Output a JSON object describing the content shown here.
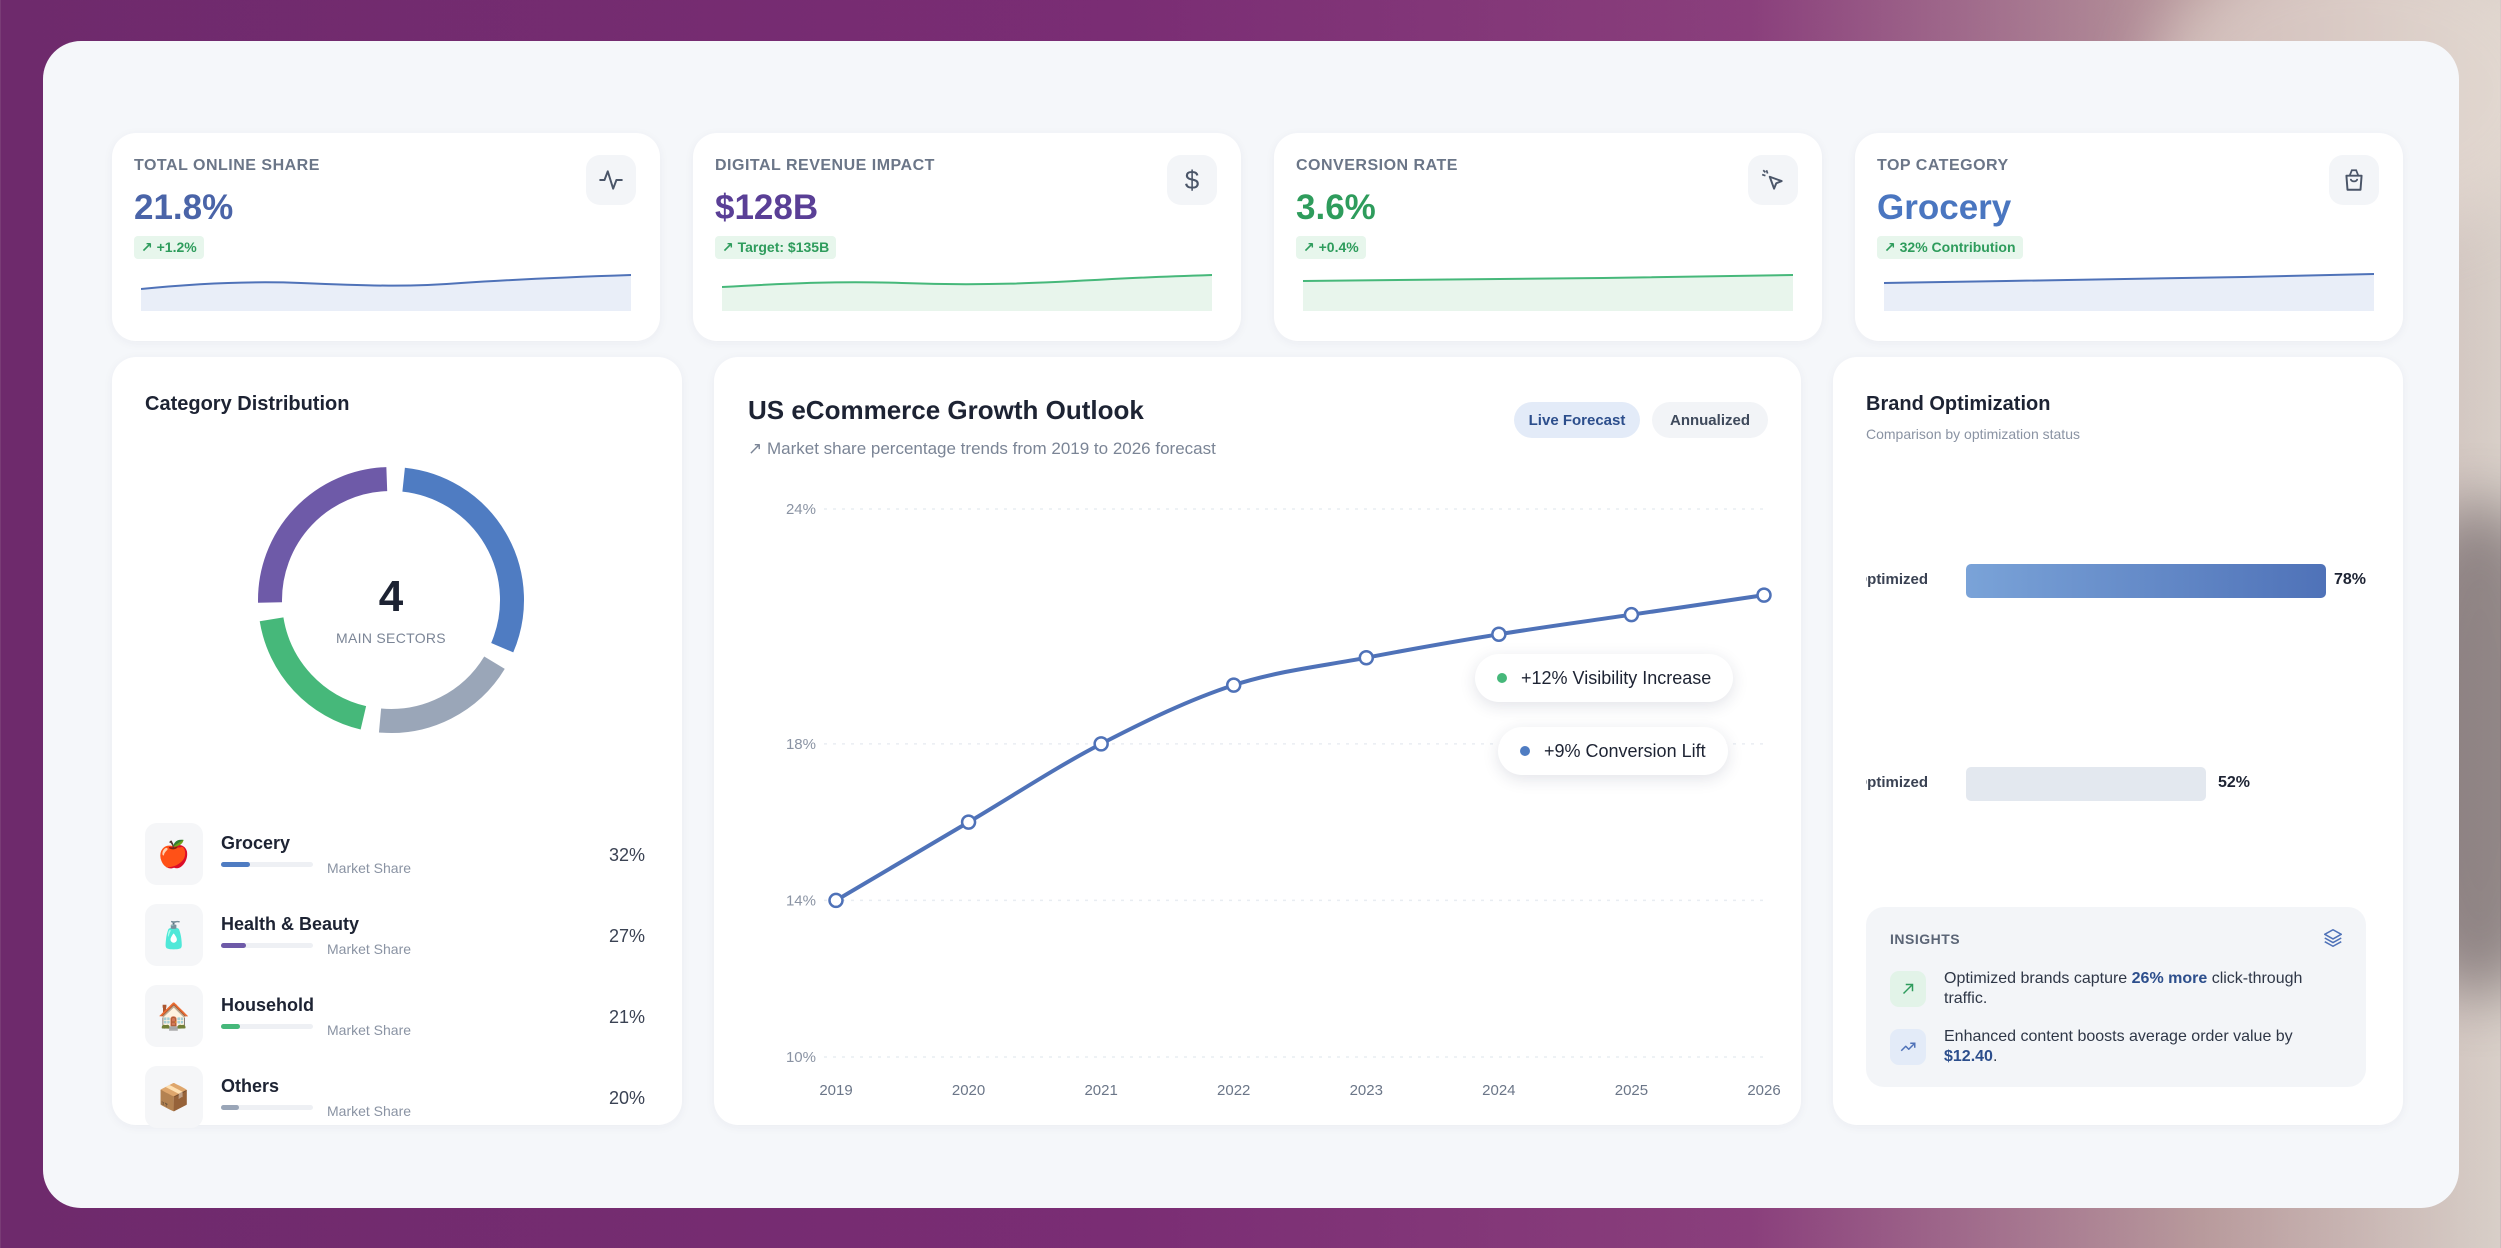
{
  "kpis": [
    {
      "label": "TOTAL ONLINE SHARE",
      "value": "21.8%",
      "badge": "↗ +1.2%",
      "icon": "activity-icon",
      "color": "#4a64a8"
    },
    {
      "label": "DIGITAL REVENUE IMPACT",
      "value": "$128B",
      "badge": "↗ Target: $135B",
      "icon": "dollar-icon",
      "color": "#5a3f96"
    },
    {
      "label": "CONVERSION RATE",
      "value": "3.6%",
      "badge": "↗ +0.4%",
      "icon": "pointer-click-icon",
      "color": "#2e9c5c"
    },
    {
      "label": "TOP CATEGORY",
      "value": "Grocery",
      "badge": "↗ 32% Contribution",
      "icon": "shopping-bag-icon",
      "color": "#4a76c0"
    }
  ],
  "category": {
    "title": "Category Distribution",
    "center_value": "4",
    "center_label": "MAIN SECTORS",
    "items": [
      {
        "name": "Grocery",
        "sub": "Market Share",
        "pct": "32%",
        "share": 0.32,
        "color": "#4f7cc2",
        "icon": "apple-icon",
        "glyph": "🍎"
      },
      {
        "name": "Health & Beauty",
        "sub": "Market Share",
        "pct": "27%",
        "share": 0.27,
        "color": "#6e5aa8",
        "icon": "lotion-bottle-icon",
        "glyph": "🧴"
      },
      {
        "name": "Household",
        "sub": "Market Share",
        "pct": "21%",
        "share": 0.21,
        "color": "#46b87a",
        "icon": "house-icon",
        "glyph": "🏠"
      },
      {
        "name": "Others",
        "sub": "Market Share",
        "pct": "20%",
        "share": 0.2,
        "color": "#9aa6b8",
        "icon": "package-icon",
        "glyph": "📦"
      }
    ]
  },
  "growth": {
    "title": "US eCommerce Growth Outlook",
    "subtitle": "↗ Market share percentage trends from 2019 to 2026 forecast",
    "tabs": [
      "Live Forecast",
      "Annualized"
    ],
    "callouts": [
      {
        "text": "+12% Visibility Increase",
        "color": "#46b87a"
      },
      {
        "text": "+9% Conversion Lift",
        "color": "#4f7cc2"
      }
    ]
  },
  "chart_data": {
    "type": "line",
    "title": "US eCommerce Growth Outlook",
    "xlabel": "",
    "ylabel": "",
    "x": [
      "2019",
      "2020",
      "2021",
      "2022",
      "2023",
      "2024",
      "2025",
      "2026"
    ],
    "series": [
      {
        "values": [
          14,
          16,
          18,
          19.5,
          20.2,
          20.8,
          21.3,
          21.8
        ]
      }
    ],
    "ylim": [
      10,
      24
    ],
    "yticks": [
      "24%",
      "18%",
      "14%",
      "10%"
    ],
    "ytick_values": [
      24,
      18,
      14,
      10
    ],
    "grid": true,
    "line_color": "#4f72b8"
  },
  "brand": {
    "title": "Brand Optimization",
    "subtitle": "Comparison by optimization status",
    "bars": [
      {
        "label": "Optimized",
        "pct": "78%",
        "value": 0.78,
        "colors": [
          "#7aa3d8",
          "#4f72b8"
        ]
      },
      {
        "label": "Non-Optimized",
        "pct": "52%",
        "value": 0.52,
        "colors": [
          "#e3e8ef",
          "#e3e8ef"
        ]
      }
    ],
    "insights_title": "INSIGHTS",
    "insights": [
      {
        "before": "Optimized brands capture ",
        "highlight": "26% more",
        "after": " click-through traffic.",
        "icon": "arrow-up-right-icon",
        "bg": "#e2f3e8",
        "fg": "#2e9c5c"
      },
      {
        "before": "Enhanced content boosts average order value by ",
        "highlight": "$12.40",
        "after": ".",
        "icon": "trending-up-icon",
        "bg": "#e3ebf8",
        "fg": "#4f72b8"
      }
    ]
  }
}
